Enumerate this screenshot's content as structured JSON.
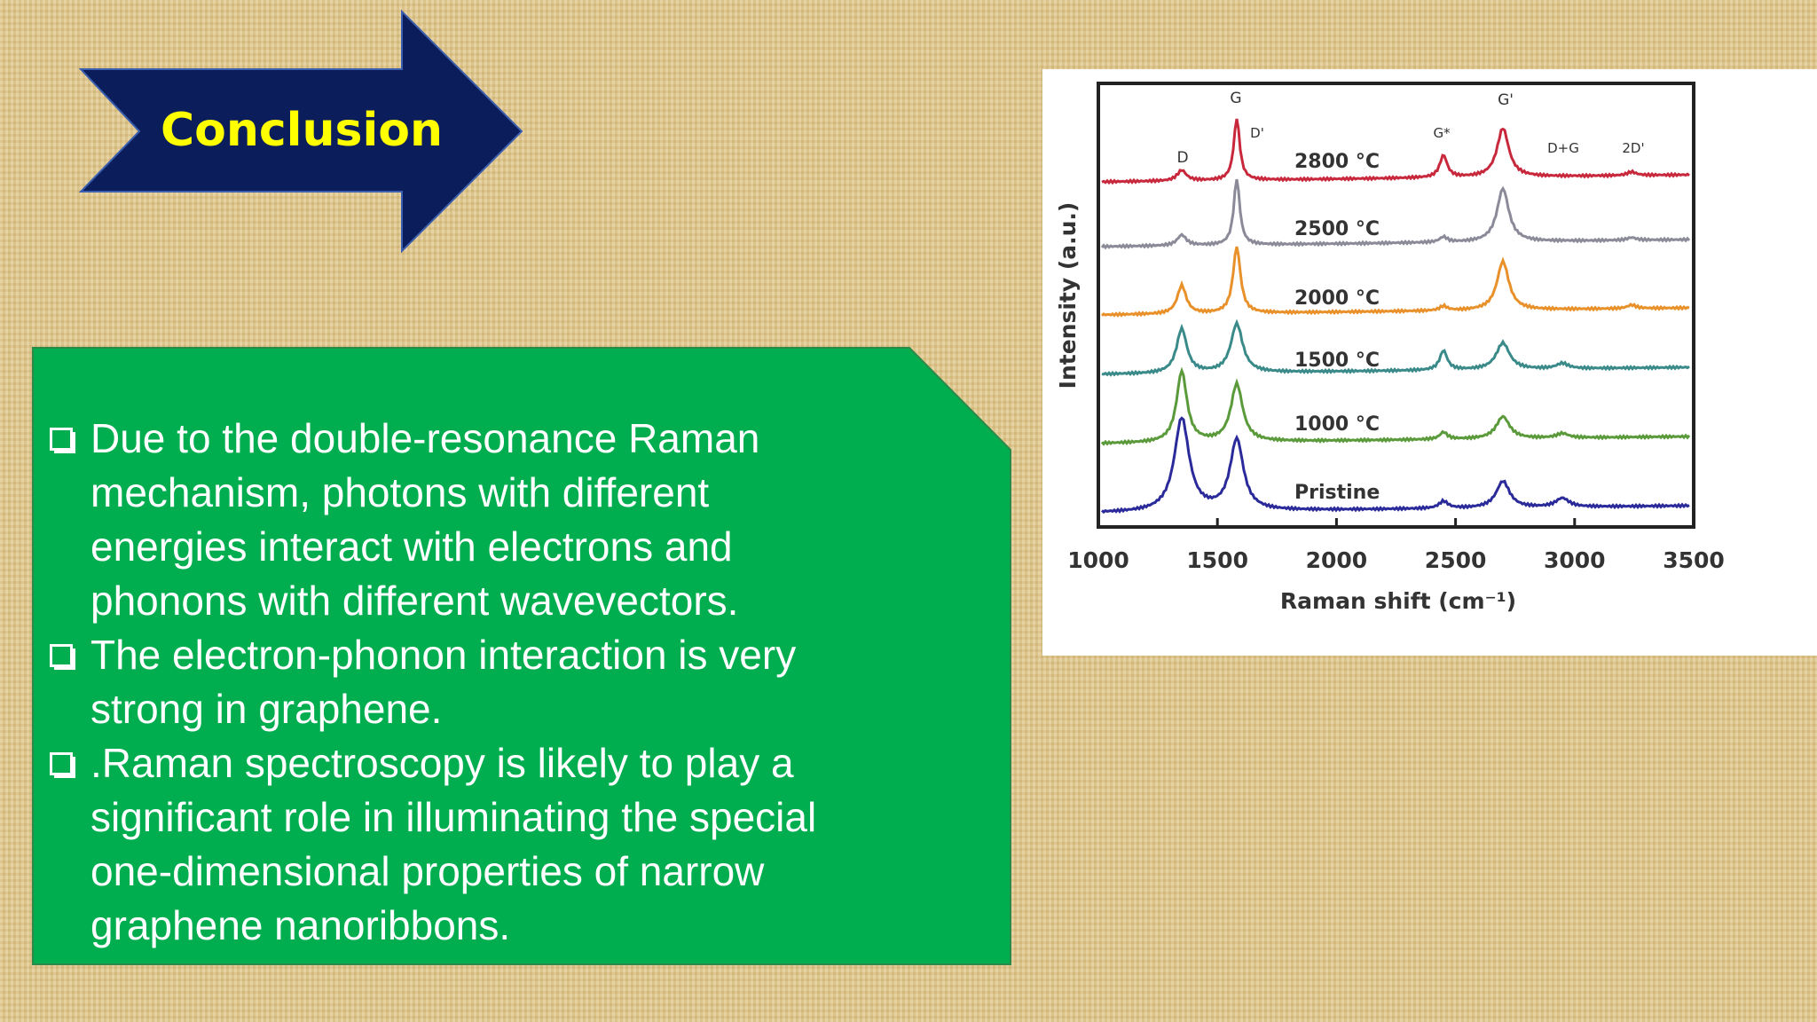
{
  "header": {
    "title": "Conclusion"
  },
  "bullets": [
    {
      "lines": [
        "Due to the double-resonance Raman",
        "mechanism, photons with different",
        "energies interact with electrons and",
        "phonons with different wavevectors."
      ]
    },
    {
      "lines": [
        "The electron-phonon interaction is very",
        "strong in graphene."
      ]
    },
    {
      "lines": [
        ".Raman spectroscopy is likely to play a",
        "significant role in illuminating the special",
        "one-dimensional properties of narrow",
        "graphene nanoribbons."
      ]
    }
  ],
  "figure": {
    "xlabel": "Raman shift (cm⁻¹)",
    "ylabel": "Intensity (a.u.)",
    "xlim": [
      1000,
      3500
    ],
    "xticks": [
      1000,
      1500,
      2000,
      2500,
      3000,
      3500
    ],
    "peaks": [
      "D",
      "G",
      "D'",
      "G*",
      "G'",
      "D+G",
      "2D'"
    ],
    "series": [
      "2800 °C",
      "2500 °C",
      "2000 °C",
      "1500 °C",
      "1000 °C",
      "Pristine"
    ]
  }
}
